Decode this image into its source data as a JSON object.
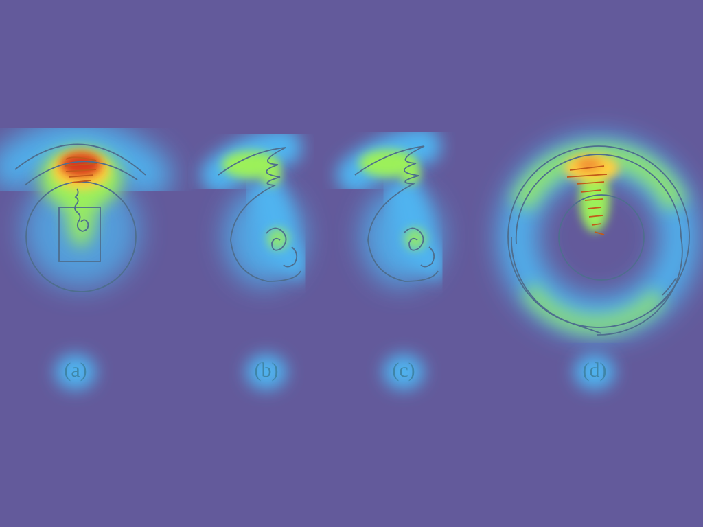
{
  "colors": {
    "background": "#635a9b",
    "heat_low": "#4fb4f0",
    "heat_mid": "#9cf05a",
    "heat_high": "#ffd040",
    "heat_peak": "#d83a1e",
    "stroke": "#4e6e8e"
  },
  "panels": [
    {
      "id": "a",
      "caption": "(a)"
    },
    {
      "id": "b",
      "caption": "(b)"
    },
    {
      "id": "c",
      "caption": "(c)"
    },
    {
      "id": "d",
      "caption": "(d)"
    }
  ]
}
